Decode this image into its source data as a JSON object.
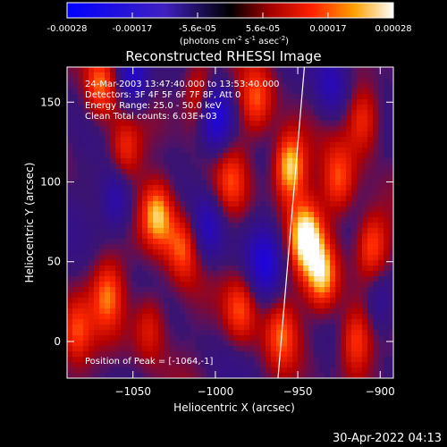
{
  "chart_data": {
    "type": "heatmap",
    "title": "Reconstructed RHESSI Image",
    "colorbar": {
      "ticks": [
        "-0.00028",
        "-0.00017",
        "-5.6e-05",
        "5.6e-05",
        "0.00017",
        "0.00028"
      ],
      "range": [
        -0.00028,
        0.00028
      ],
      "units_main": "(photons cm",
      "units_exp1": "-2",
      "units_mid1": " s",
      "units_exp2": "-1",
      "units_mid2": " asec",
      "units_exp3": "-2",
      "units_end": ")"
    },
    "xlabel": "Heliocentric X (arcsec)",
    "ylabel": "Heliocentric Y (arcsec)",
    "xlim": [
      -1090,
      -892
    ],
    "ylim": [
      -23,
      172
    ],
    "xticks": [
      {
        "value": -1050,
        "label": "−1050"
      },
      {
        "value": -1000,
        "label": "−1000"
      },
      {
        "value": -950,
        "label": "−950"
      },
      {
        "value": -900,
        "label": "−900"
      }
    ],
    "yticks": [
      {
        "value": 0,
        "label": "0"
      },
      {
        "value": 50,
        "label": "50"
      },
      {
        "value": 100,
        "label": "100"
      },
      {
        "value": 150,
        "label": "150"
      }
    ],
    "annotations": [
      "24-Mar-2003 13:47:40.000 to 13:53:40.000",
      "Detectors: 3F 4F 5F 6F 7F 8F, Att 0",
      "Energy Range: 25.0 - 50.0 keV",
      "Clean    Total counts: 6.03E+03"
    ],
    "peak_label": "Position of Peak = [-1064,-1]",
    "peak": [
      -1064,
      -1
    ],
    "limb_line": [
      [
        -962,
        -23
      ],
      [
        -946,
        172
      ]
    ],
    "hotspots": [
      {
        "x": -1085,
        "y": 5,
        "v": 0.6
      },
      {
        "x": -1070,
        "y": 160,
        "v": 0.7
      },
      {
        "x": -1065,
        "y": 30,
        "v": 0.6
      },
      {
        "x": -1055,
        "y": 120,
        "v": 0.55
      },
      {
        "x": -1035,
        "y": 80,
        "v": 0.9
      },
      {
        "x": -1020,
        "y": 60,
        "v": 0.6
      },
      {
        "x": -1040,
        "y": 10,
        "v": 0.5
      },
      {
        "x": -1010,
        "y": 155,
        "v": 0.6
      },
      {
        "x": -985,
        "y": 20,
        "v": 0.6
      },
      {
        "x": -990,
        "y": 100,
        "v": 0.45
      },
      {
        "x": -955,
        "y": 110,
        "v": 1.0
      },
      {
        "x": -945,
        "y": 65,
        "v": 0.95
      },
      {
        "x": -935,
        "y": 40,
        "v": 0.8
      },
      {
        "x": -925,
        "y": 100,
        "v": 0.6
      },
      {
        "x": -910,
        "y": 140,
        "v": 0.6
      },
      {
        "x": -905,
        "y": 60,
        "v": 0.7
      },
      {
        "x": -915,
        "y": 0,
        "v": 0.65
      },
      {
        "x": -960,
        "y": 5,
        "v": 0.5
      },
      {
        "x": -975,
        "y": 150,
        "v": 0.55
      }
    ],
    "coldspots": [
      {
        "x": -1050,
        "y": 165,
        "v": -0.7
      },
      {
        "x": -1060,
        "y": 90,
        "v": -0.6
      },
      {
        "x": -1000,
        "y": 140,
        "v": -0.8
      },
      {
        "x": -1005,
        "y": 70,
        "v": -0.55
      },
      {
        "x": -970,
        "y": 50,
        "v": -0.6
      },
      {
        "x": -930,
        "y": 160,
        "v": -0.5
      },
      {
        "x": -900,
        "y": 25,
        "v": -0.45
      }
    ]
  },
  "footer": {
    "timestamp": "30-Apr-2022 04:13"
  }
}
